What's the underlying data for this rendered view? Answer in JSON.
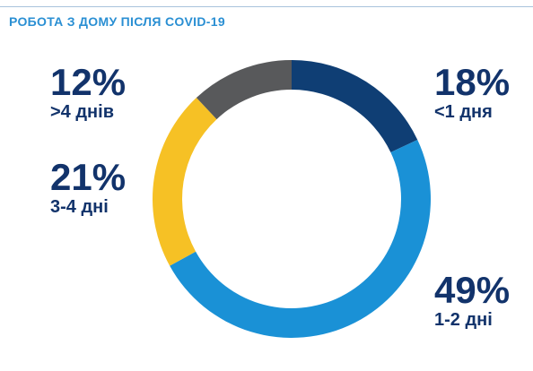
{
  "title": "РОБОТА З ДОМУ ПІСЛЯ COVID-19",
  "chart_data": {
    "type": "pie",
    "title": "РОБОТА З ДОМУ ПІСЛЯ COVID-19",
    "donut": true,
    "slices": [
      {
        "label": "<1 дня",
        "value": 18,
        "display": "18%",
        "color": "#0f3e74"
      },
      {
        "label": "1-2 дні",
        "value": 49,
        "display": "49%",
        "color": "#1a91d6"
      },
      {
        "label": "3-4 дні",
        "value": 21,
        "display": "21%",
        "color": "#f6c125"
      },
      {
        "label": ">4 днів",
        "value": 12,
        "display": "12%",
        "color": "#58595b"
      }
    ],
    "start_angle_deg": 0,
    "direction": "clockwise"
  }
}
